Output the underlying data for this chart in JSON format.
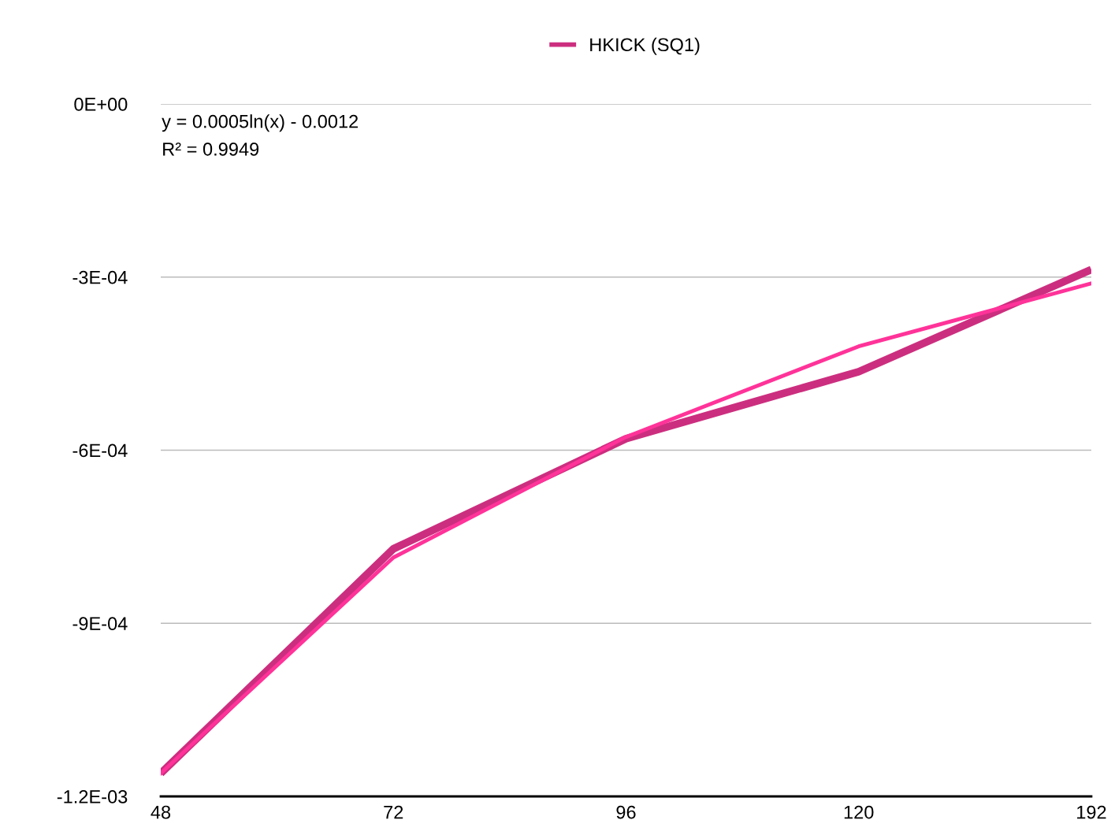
{
  "chart_data": {
    "type": "line",
    "categories": [
      "48",
      "72",
      "96",
      "120",
      "192"
    ],
    "series": [
      {
        "name": "HKICK (SQ1)",
        "color": "#cc2e7f",
        "values": [
          -0.00116,
          -0.000771,
          -0.00058,
          -0.000464,
          -0.000287
        ]
      },
      {
        "type": "line",
        "color": "#ff3399",
        "values": [
          -0.00116,
          -0.000786,
          -0.000577,
          -0.00042,
          -0.000311
        ]
      }
    ],
    "ylim": [
      -0.0012,
      0
    ],
    "yticks": [
      {
        "value": -0.0012,
        "label": "-1.2E-03"
      },
      {
        "value": -0.0009,
        "label": "-9E-04"
      },
      {
        "value": -0.0006,
        "label": "-6E-04"
      },
      {
        "value": -0.0003,
        "label": "-3E-04"
      },
      {
        "value": 0,
        "label": "0E+00"
      }
    ],
    "grid": "y",
    "legend": "top",
    "marker": "none",
    "line_style": "solid",
    "annotations": [
      "y = 0.0005ln(x) - 0.0012",
      "R² = 0.9949"
    ]
  }
}
